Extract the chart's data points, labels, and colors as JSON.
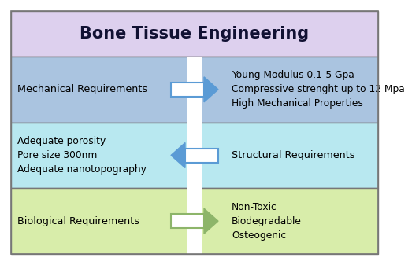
{
  "title": "Bone Tissue Engineering",
  "title_bg": "#ddd0ee",
  "title_fontsize": 15,
  "title_fontweight": "bold",
  "bg_color": "#ffffff",
  "fig_w": 4.74,
  "fig_h": 3.17,
  "rows": [
    {
      "left_text": "Mechanical Requirements",
      "right_text": "Young Modulus 0.1-5 Gpa\nCompressive strenght up to 12 Mpa\nHigh Mechanical Properties",
      "bg_left": "#aac4e0",
      "bg_right": "#aac4e0",
      "arrow_dir": "right",
      "arrow_color": "#5b9bd5",
      "left_align": "left",
      "right_align": "left"
    },
    {
      "left_text": "Adequate porosity\nPore size 300nm\nAdequate nanotopography",
      "right_text": "Structural Requirements",
      "bg_left": "#b8e8f0",
      "bg_right": "#b8e8f0",
      "arrow_dir": "left",
      "arrow_color": "#5b9bd5",
      "left_align": "left",
      "right_align": "left"
    },
    {
      "left_text": "Biological Requirements",
      "right_text": "Non-Toxic\nBiodegradable\nOsteogenic",
      "bg_left": "#d8edaa",
      "bg_right": "#d8edaa",
      "arrow_dir": "right",
      "arrow_color": "#8db56a",
      "left_align": "left",
      "right_align": "left"
    }
  ]
}
